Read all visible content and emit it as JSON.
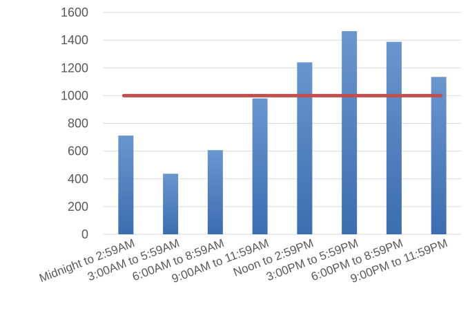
{
  "chart_data": {
    "type": "bar",
    "title": "",
    "xlabel": "",
    "ylabel": "",
    "categories": [
      "Midnight to 2:59AM",
      "3:00AM to 5:59AM",
      "6:00AM to 8:59AM",
      "9:00AM to 11:59AM",
      "Noon to 2:59PM",
      "3:00PM to 5:59PM",
      "6:00PM to 8:59PM",
      "9:00PM to 11:59PM"
    ],
    "series": [
      {
        "type": "bar",
        "values": [
          712,
          437,
          607,
          980,
          1240,
          1465,
          1388,
          1135
        ],
        "color": "#4a7ebb"
      },
      {
        "type": "line",
        "values": [
          1000,
          1000,
          1000,
          1000,
          1000,
          1000,
          1000,
          1000
        ],
        "color": "#c0504d"
      }
    ],
    "ylim": [
      0,
      1600
    ],
    "yticks": [
      0,
      200,
      400,
      600,
      800,
      1000,
      1200,
      1400,
      1600
    ],
    "grid": true,
    "legend": "none"
  }
}
